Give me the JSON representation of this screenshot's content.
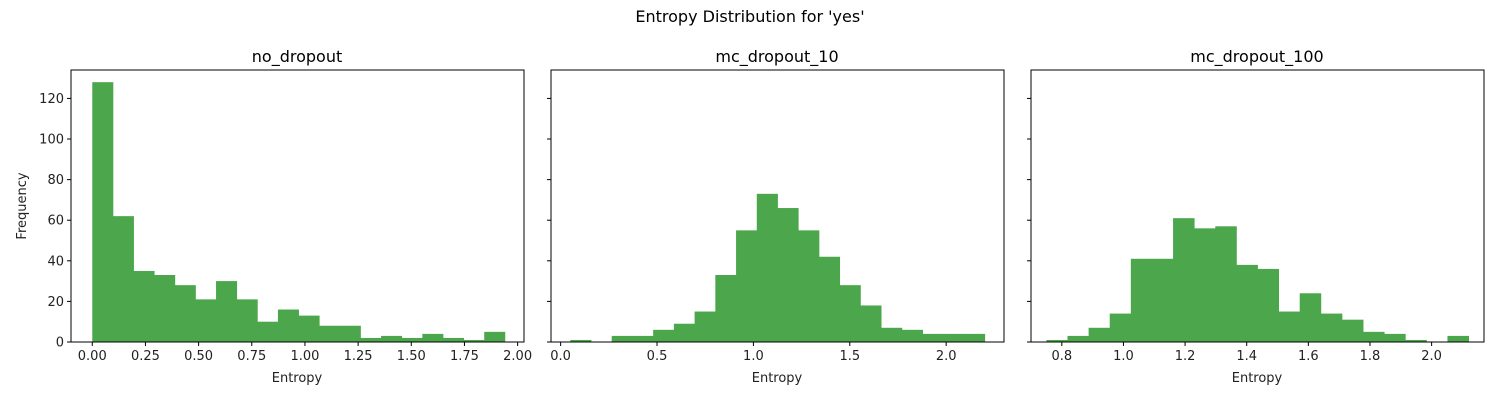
{
  "figure": {
    "suptitle": "Entropy Distribution for 'yes'",
    "bar_color": "#4ca64c",
    "ylabel": "Frequency"
  },
  "chart_data": [
    {
      "type": "bar",
      "title": "no_dropout",
      "xlabel": "Entropy",
      "ylabel": "Frequency",
      "xlim": [
        -0.1,
        2.03
      ],
      "ylim": [
        0,
        134
      ],
      "xticks": [
        0.0,
        0.25,
        0.5,
        0.75,
        1.0,
        1.25,
        1.5,
        1.75,
        2.0
      ],
      "xtick_labels": [
        "0.00",
        "0.25",
        "0.50",
        "0.75",
        "1.00",
        "1.25",
        "1.50",
        "1.75",
        "2.00"
      ],
      "yticks": [
        0,
        20,
        40,
        60,
        80,
        100,
        120
      ],
      "ytick_labels": [
        "0",
        "20",
        "40",
        "60",
        "80",
        "100",
        "120"
      ],
      "bin_edges": [
        0.0,
        0.097,
        0.194,
        0.291,
        0.388,
        0.485,
        0.582,
        0.679,
        0.776,
        0.873,
        0.97,
        1.067,
        1.164,
        1.261,
        1.358,
        1.455,
        1.552,
        1.649,
        1.746,
        1.843,
        1.94
      ],
      "values": [
        128,
        62,
        35,
        33,
        28,
        21,
        30,
        21,
        10,
        16,
        13,
        8,
        8,
        2,
        3,
        2,
        4,
        2,
        1,
        5
      ]
    },
    {
      "type": "bar",
      "title": "mc_dropout_10",
      "xlabel": "Entropy",
      "xlim": [
        -0.05,
        2.3
      ],
      "ylim": [
        0,
        134
      ],
      "xticks": [
        0.0,
        0.5,
        1.0,
        1.5,
        2.0
      ],
      "xtick_labels": [
        "0.0",
        "0.5",
        "1.0",
        "1.5",
        "2.0"
      ],
      "yticks": [
        0,
        20,
        40,
        60,
        80,
        100,
        120
      ],
      "bin_edges": [
        0.05,
        0.1575,
        0.265,
        0.3725,
        0.48,
        0.5875,
        0.695,
        0.8025,
        0.91,
        1.0175,
        1.125,
        1.2325,
        1.34,
        1.4475,
        1.555,
        1.6625,
        1.77,
        1.8775,
        1.985,
        2.0925,
        2.2
      ],
      "values": [
        1,
        0,
        3,
        3,
        6,
        9,
        15,
        33,
        55,
        73,
        66,
        55,
        42,
        28,
        18,
        7,
        6,
        4,
        4,
        4
      ]
    },
    {
      "type": "bar",
      "title": "mc_dropout_100",
      "xlabel": "Entropy",
      "xlim": [
        0.7,
        2.17
      ],
      "ylim": [
        0,
        134
      ],
      "xticks": [
        0.8,
        1.0,
        1.2,
        1.4,
        1.6,
        1.8,
        2.0
      ],
      "xtick_labels": [
        "0.8",
        "1.0",
        "1.2",
        "1.4",
        "1.6",
        "1.8",
        "2.0"
      ],
      "yticks": [
        0,
        20,
        40,
        60,
        80,
        100,
        120
      ],
      "bin_edges": [
        0.75,
        0.8185,
        0.887,
        0.9555,
        1.024,
        1.0925,
        1.161,
        1.2295,
        1.298,
        1.3665,
        1.435,
        1.5035,
        1.572,
        1.6405,
        1.709,
        1.7775,
        1.846,
        1.9145,
        1.983,
        2.0515,
        2.12
      ],
      "values": [
        1,
        3,
        7,
        14,
        41,
        41,
        61,
        56,
        57,
        38,
        36,
        15,
        24,
        14,
        11,
        5,
        4,
        1,
        0,
        3
      ]
    }
  ]
}
